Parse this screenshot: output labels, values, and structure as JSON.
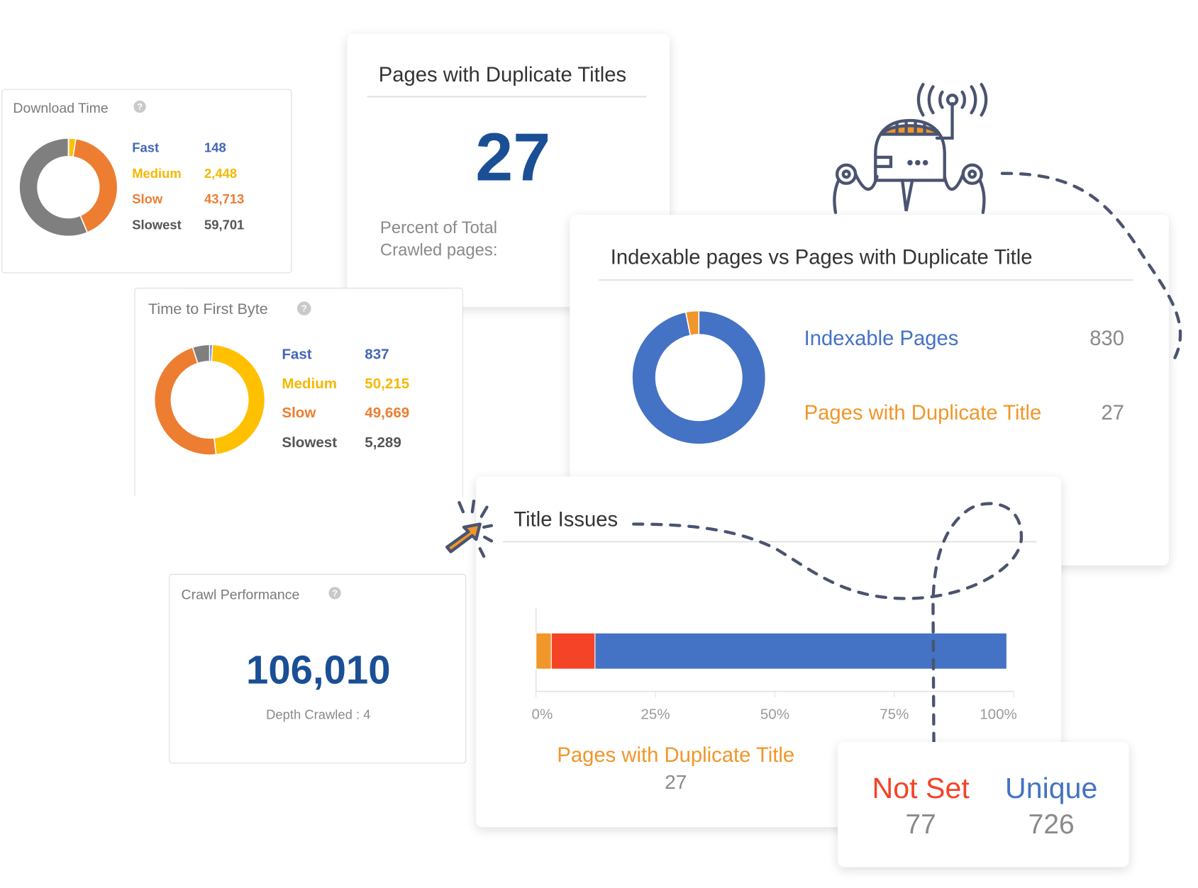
{
  "colors": {
    "fast": "#4472c4",
    "medium": "#ffc000",
    "slow": "#ed7d31",
    "slowest": "#7f7f7f",
    "not_set": "#f44326",
    "duplicate": "#f0962a",
    "big_number": "#1a4f96",
    "dash": "#4a5470"
  },
  "download_time": {
    "title": "Download Time",
    "help_icon": "?",
    "legend": [
      {
        "label": "Fast",
        "value": "148",
        "num": 148
      },
      {
        "label": "Medium",
        "value": "2,448",
        "num": 2448
      },
      {
        "label": "Slow",
        "value": "43,713",
        "num": 43713
      },
      {
        "label": "Slowest",
        "value": "59,701",
        "num": 59701
      }
    ]
  },
  "duplicate_titles": {
    "title": "Pages with Duplicate Titles",
    "value": "27",
    "percent_label_line1": "Percent of Total",
    "percent_label_line2": "Crawled pages:"
  },
  "ttfb": {
    "title": "Time to First Byte",
    "help_icon": "?",
    "legend": [
      {
        "label": "Fast",
        "value": "837",
        "num": 837
      },
      {
        "label": "Medium",
        "value": "50,215",
        "num": 50215
      },
      {
        "label": "Slow",
        "value": "49,669",
        "num": 49669
      },
      {
        "label": "Slowest",
        "value": "5,289",
        "num": 5289
      }
    ]
  },
  "indexable": {
    "title": "Indexable pages vs Pages with Duplicate Title",
    "items": [
      {
        "label": "Indexable Pages",
        "value": "830",
        "num": 830
      },
      {
        "label": "Pages with Duplicate Title",
        "value": "27",
        "num": 27
      }
    ]
  },
  "crawl": {
    "title": "Crawl Performance",
    "help_icon": "?",
    "value": "106,010",
    "depth": "Depth Crawled : 4"
  },
  "title_issues": {
    "title": "Title Issues",
    "segments": [
      {
        "name": "Pages with Duplicate Title",
        "num": 27
      },
      {
        "name": "Not Set",
        "num": 77
      },
      {
        "name": "Unique",
        "num": 726
      }
    ],
    "ticks": [
      "0%",
      "25%",
      "50%",
      "75%",
      "100%"
    ],
    "duplicate_label": "Pages with Duplicate Title",
    "duplicate_value": "27"
  },
  "callout": {
    "not_set_label": "Not Set",
    "not_set_value": "77",
    "unique_label": "Unique",
    "unique_value": "726"
  }
}
